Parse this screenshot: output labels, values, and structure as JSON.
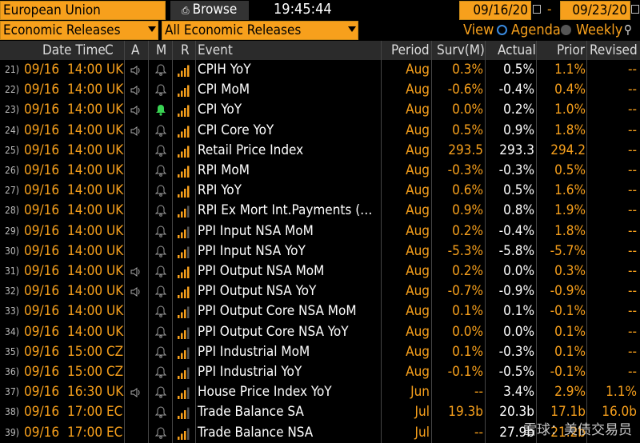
{
  "toolbar": {
    "region": "European Union",
    "browse_label": "Browse",
    "time": "19:45:44",
    "start_date": "09/16/20",
    "date_separator": "-",
    "end_date": "09/23/20",
    "category": "Economic Releases",
    "filter": "All Economic Releases",
    "view_label": "View",
    "agenda_label": "Agenda",
    "weekly_label": "Weekly"
  },
  "columns": {
    "date_time": "Date Time",
    "country": "C",
    "alert": "A",
    "memo": "M",
    "relevance": "R",
    "event": "Event",
    "period": "Period",
    "survey": "Surv(M)",
    "actual": "Actual",
    "prior": "Prior",
    "revised": "Revised"
  },
  "colors": {
    "accent": "#f7a01c",
    "header_bg": "#2b2b2b",
    "bell_active": "#39d353"
  },
  "rows": [
    {
      "n": "21)",
      "date": "09/16",
      "time": "14:00",
      "cty": "UK",
      "speaker": true,
      "bell": "gray",
      "bars": 4,
      "event": "CPIH YoY",
      "period": "Aug",
      "survey": "0.3%",
      "actual": "0.5%",
      "prior": "1.1%",
      "revised": "--"
    },
    {
      "n": "22)",
      "date": "09/16",
      "time": "14:00",
      "cty": "UK",
      "speaker": true,
      "bell": "gray",
      "bars": 4,
      "event": "CPI MoM",
      "period": "Aug",
      "survey": "-0.6%",
      "actual": "-0.4%",
      "prior": "0.4%",
      "revised": "--"
    },
    {
      "n": "23)",
      "date": "09/16",
      "time": "14:00",
      "cty": "UK",
      "speaker": true,
      "bell": "green",
      "bars": 4,
      "event": "CPI YoY",
      "period": "Aug",
      "survey": "0.0%",
      "actual": "0.2%",
      "prior": "1.0%",
      "revised": "--"
    },
    {
      "n": "24)",
      "date": "09/16",
      "time": "14:00",
      "cty": "UK",
      "speaker": true,
      "bell": "gray",
      "bars": 4,
      "event": "CPI Core YoY",
      "period": "Aug",
      "survey": "0.5%",
      "actual": "0.9%",
      "prior": "1.8%",
      "revised": "--"
    },
    {
      "n": "25)",
      "date": "09/16",
      "time": "14:00",
      "cty": "UK",
      "speaker": false,
      "bell": "gray",
      "bars": 4,
      "event": "Retail Price Index",
      "period": "Aug",
      "survey": "293.5",
      "actual": "293.3",
      "prior": "294.2",
      "revised": "--"
    },
    {
      "n": "26)",
      "date": "09/16",
      "time": "14:00",
      "cty": "UK",
      "speaker": false,
      "bell": "gray",
      "bars": 4,
      "event": "RPI MoM",
      "period": "Aug",
      "survey": "-0.3%",
      "actual": "-0.3%",
      "prior": "0.5%",
      "revised": "--"
    },
    {
      "n": "27)",
      "date": "09/16",
      "time": "14:00",
      "cty": "UK",
      "speaker": false,
      "bell": "gray",
      "bars": 4,
      "event": "RPI YoY",
      "period": "Aug",
      "survey": "0.6%",
      "actual": "0.5%",
      "prior": "1.6%",
      "revised": "--"
    },
    {
      "n": "28)",
      "date": "09/16",
      "time": "14:00",
      "cty": "UK",
      "speaker": false,
      "bell": "gray",
      "bars": 3,
      "event": "RPI Ex Mort Int.Payments (…",
      "period": "Aug",
      "survey": "0.9%",
      "actual": "0.8%",
      "prior": "1.9%",
      "revised": "--"
    },
    {
      "n": "29)",
      "date": "09/16",
      "time": "14:00",
      "cty": "UK",
      "speaker": false,
      "bell": "gray",
      "bars": 3,
      "event": "PPI Input NSA MoM",
      "period": "Aug",
      "survey": "0.2%",
      "actual": "-0.4%",
      "prior": "1.8%",
      "revised": "--"
    },
    {
      "n": "30)",
      "date": "09/16",
      "time": "14:00",
      "cty": "UK",
      "speaker": false,
      "bell": "gray",
      "bars": 3,
      "event": "PPI Input NSA YoY",
      "period": "Aug",
      "survey": "-5.3%",
      "actual": "-5.8%",
      "prior": "-5.7%",
      "revised": "--"
    },
    {
      "n": "31)",
      "date": "09/16",
      "time": "14:00",
      "cty": "UK",
      "speaker": true,
      "bell": "gray",
      "bars": 4,
      "event": "PPI Output NSA MoM",
      "period": "Aug",
      "survey": "0.2%",
      "actual": "0.0%",
      "prior": "0.3%",
      "revised": "--"
    },
    {
      "n": "32)",
      "date": "09/16",
      "time": "14:00",
      "cty": "UK",
      "speaker": true,
      "bell": "gray",
      "bars": 4,
      "event": "PPI Output NSA YoY",
      "period": "Aug",
      "survey": "-0.7%",
      "actual": "-0.9%",
      "prior": "-0.9%",
      "revised": "--"
    },
    {
      "n": "33)",
      "date": "09/16",
      "time": "14:00",
      "cty": "UK",
      "speaker": false,
      "bell": "gray",
      "bars": 3,
      "event": "PPI Output Core NSA MoM",
      "period": "Aug",
      "survey": "0.1%",
      "actual": "0.1%",
      "prior": "-0.1%",
      "revised": "--"
    },
    {
      "n": "34)",
      "date": "09/16",
      "time": "14:00",
      "cty": "UK",
      "speaker": false,
      "bell": "gray",
      "bars": 3,
      "event": "PPI Output Core NSA YoY",
      "period": "Aug",
      "survey": "0.0%",
      "actual": "0.0%",
      "prior": "0.1%",
      "revised": "--"
    },
    {
      "n": "35)",
      "date": "09/16",
      "time": "15:00",
      "cty": "CZ",
      "speaker": false,
      "bell": "gray",
      "bars": 3,
      "event": "PPI Industrial MoM",
      "period": "Aug",
      "survey": "0.1%",
      "actual": "-0.3%",
      "prior": "0.1%",
      "revised": "--"
    },
    {
      "n": "36)",
      "date": "09/16",
      "time": "15:00",
      "cty": "CZ",
      "speaker": false,
      "bell": "gray",
      "bars": 3,
      "event": "PPI Industrial YoY",
      "period": "Aug",
      "survey": "-0.1%",
      "actual": "-0.5%",
      "prior": "-0.1%",
      "revised": "--"
    },
    {
      "n": "37)",
      "date": "09/16",
      "time": "16:30",
      "cty": "UK",
      "speaker": true,
      "bell": "gray",
      "bars": 3,
      "event": "House Price Index YoY",
      "period": "Jun",
      "survey": "--",
      "actual": "3.4%",
      "prior": "2.9%",
      "revised": "1.1%"
    },
    {
      "n": "38)",
      "date": "09/16",
      "time": "17:00",
      "cty": "EC",
      "speaker": false,
      "bell": "gray",
      "bars": 3,
      "event": "Trade Balance SA",
      "period": "Jul",
      "survey": "19.3b",
      "actual": "20.3b",
      "prior": "17.1b",
      "revised": "16.0b"
    },
    {
      "n": "39)",
      "date": "09/16",
      "time": "17:00",
      "cty": "EC",
      "speaker": false,
      "bell": "gray",
      "bars": 3,
      "event": "Trade Balance NSA",
      "period": "Jul",
      "survey": "--",
      "actual": "27.9b",
      "prior": "21.2b",
      "revised": ""
    }
  ],
  "watermark": "雪球：美债交易员"
}
